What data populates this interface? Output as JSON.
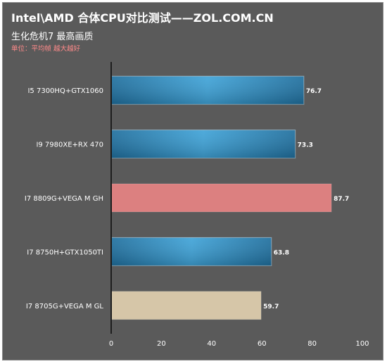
{
  "chart_data": {
    "type": "bar",
    "orientation": "horizontal",
    "title": "Intel\\AMD 合体CPU对比测试——ZOL.COM.CN",
    "subtitle": "生化危机7  最高画质",
    "unit_note": "单位：平均帧  越大越好",
    "categories": [
      "I5 7300HQ+GTX1060",
      "I9 7980XE+RX 470",
      "I7 8809G+VEGA M GH",
      "I7 8750H+GTX1050TI",
      "I7 8705G+VEGA M GL"
    ],
    "values": [
      76.7,
      73.3,
      87.7,
      63.8,
      59.7
    ],
    "value_labels": [
      "76.7",
      "73.3",
      "87.7",
      "63.8",
      "59.7"
    ],
    "bar_colors": [
      "#2f8fc4",
      "#2f8fc4",
      "#dc8080",
      "#2f8fc4",
      "#d6c6a8"
    ],
    "bar_styles": [
      "gradient",
      "gradient",
      "flat",
      "gradient",
      "flat"
    ],
    "xlim": [
      0,
      100
    ],
    "xticks": [
      "0",
      "20",
      "40",
      "60",
      "80",
      "100"
    ],
    "grid": false
  },
  "colors": {
    "background": "#5a5a5a",
    "text": "#ffffff",
    "unit_text": "#ff8a8a",
    "axis": "#1e1e1e"
  }
}
